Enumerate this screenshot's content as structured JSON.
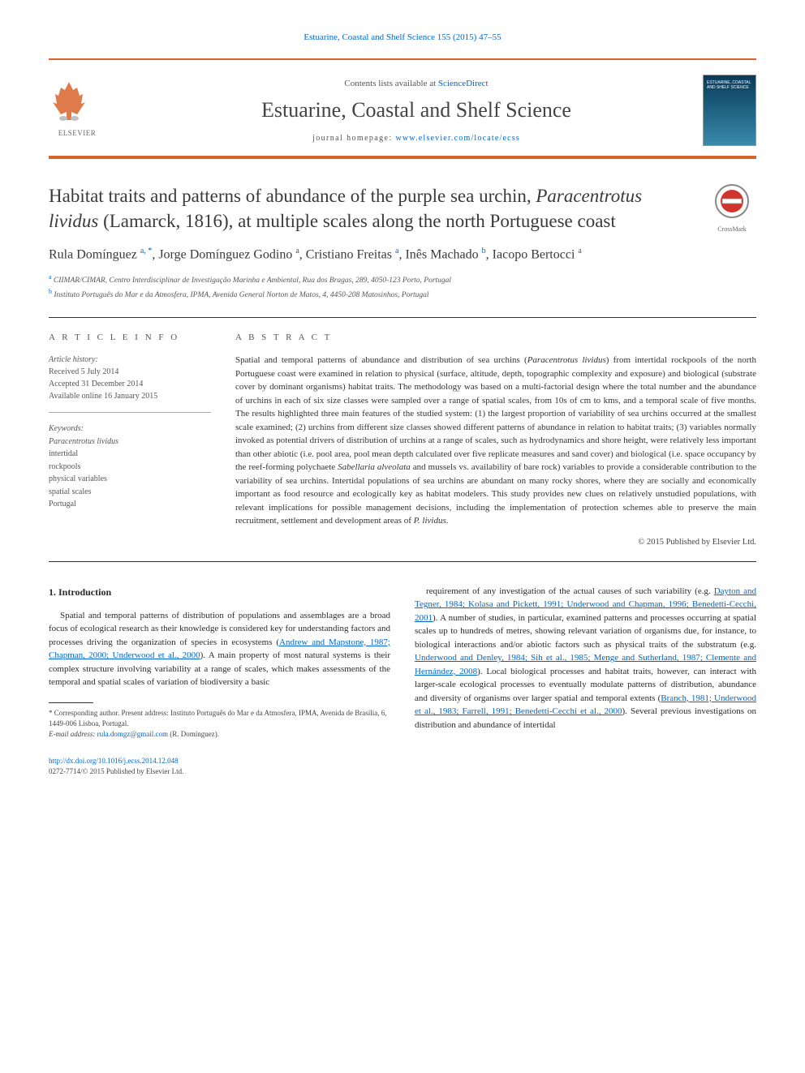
{
  "citation": {
    "text": "Estuarine, Coastal and Shelf Science 155 (2015) 47–55",
    "color": "#0066cc"
  },
  "masthead": {
    "contents_prefix": "Contents lists available at ",
    "contents_link": "ScienceDirect",
    "journal_title": "Estuarine, Coastal and Shelf Science",
    "homepage_label": "journal homepage: ",
    "homepage_url": "www.elsevier.com/locate/ecss",
    "publisher_label": "ELSEVIER",
    "cover_text": "ESTUARINE, COASTAL AND SHELF SCIENCE",
    "accent_color": "#d9642a"
  },
  "article": {
    "title_part1": "Habitat traits and patterns of abundance of the purple sea urchin, ",
    "title_italic": "Paracentrotus lividus",
    "title_part2": " (Lamarck, 1816), at multiple scales along the north Portuguese coast",
    "crossmark_label": "CrossMark"
  },
  "authors": {
    "list_html": "Rula Domínguez <sup>a, *</sup>, Jorge Domínguez Godino <sup>a</sup>, Cristiano Freitas <sup>a</sup>, Inês Machado <sup>b</sup>, Iacopo Bertocci <sup>a</sup>"
  },
  "affiliations": {
    "a": "CIIMAR/CIMAR, Centro Interdisciplinar de Investigação Marinha e Ambiental, Rua dos Bragas, 289, 4050-123 Porto, Portugal",
    "b": "Instituto Português do Mar e da Atmosfera, IPMA, Avenida General Norton de Matos, 4, 4450-208 Matosinhos, Portugal"
  },
  "info": {
    "heading": "A R T I C L E   I N F O",
    "history_label": "Article history:",
    "received": "Received 5 July 2014",
    "accepted": "Accepted 31 December 2014",
    "online": "Available online 16 January 2015",
    "keywords_label": "Keywords:",
    "keywords": [
      "Paracentrotus lividus",
      "intertidal",
      "rockpools",
      "physical variables",
      "spatial scales",
      "Portugal"
    ]
  },
  "abstract": {
    "heading": "A B S T R A C T",
    "body_html": "Spatial and temporal patterns of abundance and distribution of sea urchins (<em>Paracentrotus lividus</em>) from intertidal rockpools of the north Portuguese coast were examined in relation to physical (surface, altitude, depth, topographic complexity and exposure) and biological (substrate cover by dominant organisms) habitat traits. The methodology was based on a multi-factorial design where the total number and the abundance of urchins in each of six size classes were sampled over a range of spatial scales, from 10s of cm to kms, and a temporal scale of five months. The results highlighted three main features of the studied system: (1) the largest proportion of variability of sea urchins occurred at the smallest scale examined; (2) urchins from different size classes showed different patterns of abundance in relation to habitat traits; (3) variables normally invoked as potential drivers of distribution of urchins at a range of scales, such as hydrodynamics and shore height, were relatively less important than other abiotic (i.e. pool area, pool mean depth calculated over five replicate measures and sand cover) and biological (i.e. space occupancy by the reef-forming polychaete <em>Sabellaria alveolata</em> and mussels vs. availability of bare rock) variables to provide a considerable contribution to the variability of sea urchins. Intertidal populations of sea urchins are abundant on many rocky shores, where they are socially and economically important as food resource and ecologically key as habitat modelers. This study provides new clues on relatively unstudied populations, with relevant implications for possible management decisions, including the implementation of protection schemes able to preserve the main recruitment, settlement and development areas of <em>P. lividus</em>.",
    "copyright": "© 2015 Published by Elsevier Ltd."
  },
  "body": {
    "section_heading": "1. Introduction",
    "col1_html": "Spatial and temporal patterns of distribution of populations and assemblages are a broad focus of ecological research as their knowledge is considered key for understanding factors and processes driving the organization of species in ecosystems (<a href='#'>Andrew and Mapstone, 1987; Chapman, 2000; Underwood et al., 2000</a>). A main property of most natural systems is their complex structure involving variability at a range of scales, which makes assessments of the temporal and spatial scales of variation of biodiversity a basic",
    "col2_html": "requirement of any investigation of the actual causes of such variability (e.g. <a href='#'>Dayton and Tegner, 1984; Kolasa and Pickett, 1991; Underwood and Chapman, 1996; Benedetti-Cecchi, 2001</a>). A number of studies, in particular, examined patterns and processes occurring at spatial scales up to hundreds of metres, showing relevant variation of organisms due, for instance, to biological interactions and/or abiotic factors such as physical traits of the substratum (e.g. <a href='#'>Underwood and Denley, 1984; Sih et al., 1985; Menge and Sutherland, 1987; Clemente and Hernández, 2008</a>). Local biological processes and habitat traits, however, can interact with larger-scale ecological processes to eventually modulate patterns of distribution, abundance and diversity of organisms over larger spatial and temporal extents (<a href='#'>Branch, 1981; Underwood et al., 1983; Farrell, 1991; Benedetti-Cecchi et al., 2000</a>). Several previous investigations on distribution and abundance of intertidal"
  },
  "footnote": {
    "corr": "* Corresponding author. Present address: Instituto Português do Mar e da Atmosfera, IPMA, Avenida de Brasília, 6, 1449-006 Lisboa, Portugal.",
    "email_label": "E-mail address: ",
    "email": "rula.domgz@gmail.com",
    "email_suffix": " (R. Domínguez)."
  },
  "footer": {
    "doi": "http://dx.doi.org/10.1016/j.ecss.2014.12.048",
    "issn_line": "0272-7714/© 2015 Published by Elsevier Ltd."
  },
  "colors": {
    "link": "#0066cc",
    "accent": "#d9642a",
    "text": "#2a2a2a",
    "muted": "#555555"
  }
}
